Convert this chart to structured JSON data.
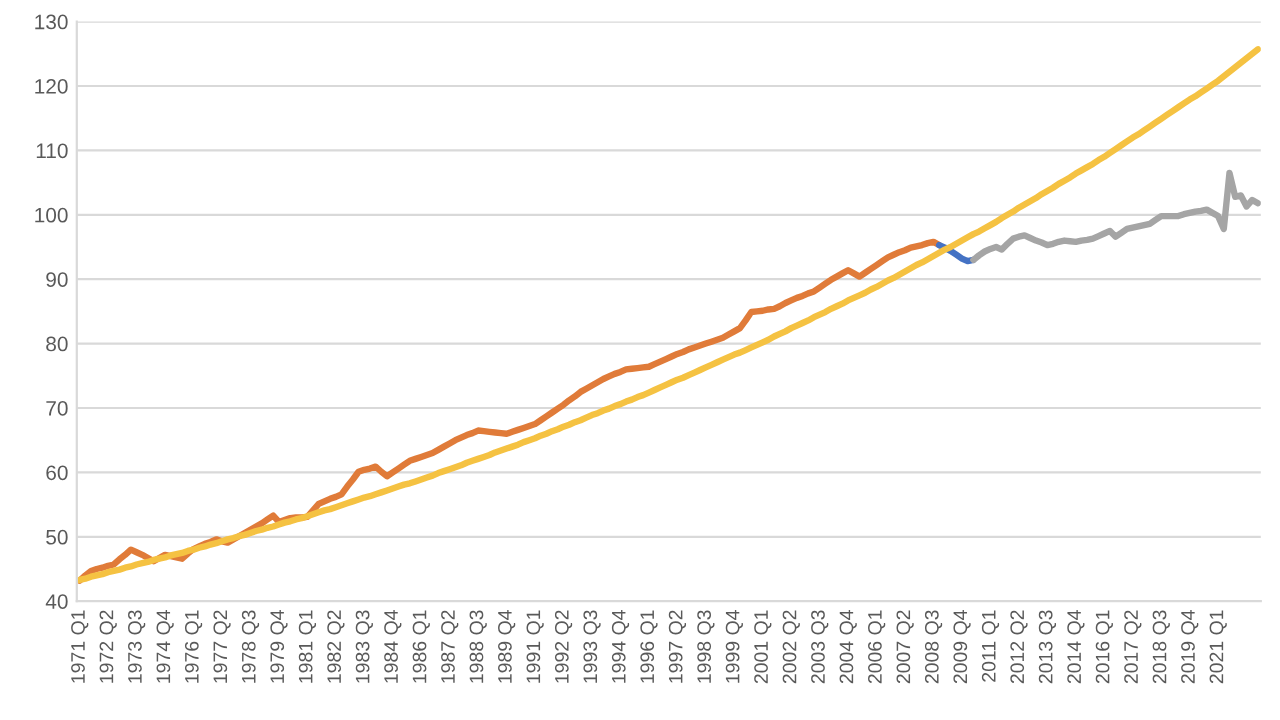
{
  "chart_data": {
    "type": "line",
    "categories": [
      "1971 Q1",
      null,
      null,
      null,
      null,
      "1972 Q2",
      null,
      null,
      null,
      null,
      "1973 Q3",
      null,
      null,
      null,
      null,
      "1974 Q4",
      null,
      null,
      null,
      null,
      "1976 Q1",
      null,
      null,
      null,
      null,
      "1977 Q2",
      null,
      null,
      null,
      null,
      "1978 Q3",
      null,
      null,
      null,
      null,
      "1979 Q4",
      null,
      null,
      null,
      null,
      "1981 Q1",
      null,
      null,
      null,
      null,
      "1982 Q2",
      null,
      null,
      null,
      null,
      "1983 Q3",
      null,
      null,
      null,
      null,
      "1984 Q4",
      null,
      null,
      null,
      null,
      "1986 Q1",
      null,
      null,
      null,
      null,
      "1987 Q2",
      null,
      null,
      null,
      null,
      "1988 Q3",
      null,
      null,
      null,
      null,
      "1989 Q4",
      null,
      null,
      null,
      null,
      "1991 Q1",
      null,
      null,
      null,
      null,
      "1992 Q2",
      null,
      null,
      null,
      null,
      "1993 Q3",
      null,
      null,
      null,
      null,
      "1994 Q4",
      null,
      null,
      null,
      null,
      "1996 Q1",
      null,
      null,
      null,
      null,
      "1997 Q2",
      null,
      null,
      null,
      null,
      "1998 Q3",
      null,
      null,
      null,
      null,
      "1999 Q4",
      null,
      null,
      null,
      null,
      "2001 Q1",
      null,
      null,
      null,
      null,
      "2002 Q2",
      null,
      null,
      null,
      null,
      "2003 Q3",
      null,
      null,
      null,
      null,
      "2004 Q4",
      null,
      null,
      null,
      null,
      "2006 Q1",
      null,
      null,
      null,
      null,
      "2007 Q2",
      null,
      null,
      null,
      null,
      "2008 Q3",
      null,
      null,
      null,
      null,
      "2009 Q4",
      null,
      null,
      null,
      null,
      "2011 Q1",
      null,
      null,
      null,
      null,
      "2012 Q2",
      null,
      null,
      null,
      null,
      "2013 Q3",
      null,
      null,
      null,
      null,
      "2014 Q4",
      null,
      null,
      null,
      null,
      "2016 Q1",
      null,
      null,
      null,
      null,
      "2017 Q2",
      null,
      null,
      null,
      null,
      "2018 Q3",
      null,
      null,
      null,
      null,
      "2019 Q4",
      null,
      null,
      null,
      null,
      "2021 Q1",
      null,
      null,
      null,
      null,
      null,
      null,
      null
    ],
    "ylim": [
      40,
      130
    ],
    "yticks": [
      40,
      50,
      60,
      70,
      80,
      90,
      100,
      110,
      120,
      130
    ],
    "grid": "y",
    "series": [
      {
        "color": "#e07b39",
        "values": [
          43.2,
          44.0,
          44.7,
          45.0,
          45.2,
          45.5,
          45.7,
          46.5,
          47.2,
          48.0,
          47.6,
          47.2,
          46.7,
          46.2,
          46.7,
          47.2,
          47.0,
          46.8,
          46.6,
          47.4,
          48.1,
          48.5,
          48.9,
          49.2,
          49.6,
          49.3,
          49.1,
          49.6,
          50.1,
          50.6,
          51.1,
          51.6,
          52.1,
          52.7,
          53.3,
          52.3,
          52.6,
          52.9,
          53.0,
          53.0,
          53.1,
          54.1,
          55.1,
          55.5,
          55.9,
          56.2,
          56.6,
          57.8,
          58.9,
          60.1,
          60.4,
          60.6,
          60.9,
          60.1,
          59.4,
          60.0,
          60.6,
          61.2,
          61.8,
          62.1,
          62.4,
          62.7,
          63.0,
          63.5,
          64.0,
          64.5,
          65.0,
          65.4,
          65.8,
          66.1,
          66.5,
          66.4,
          66.3,
          66.2,
          66.1,
          66.0,
          66.3,
          66.6,
          66.9,
          67.2,
          67.5,
          68.1,
          68.7,
          69.3,
          69.9,
          70.5,
          71.2,
          71.8,
          72.5,
          73.0,
          73.5,
          74.0,
          74.5,
          74.9,
          75.3,
          75.6,
          76.0,
          76.1,
          76.2,
          76.3,
          76.4,
          76.8,
          77.2,
          77.6,
          78.0,
          78.4,
          78.7,
          79.1,
          79.4,
          79.7,
          80.0,
          80.3,
          80.6,
          80.9,
          81.4,
          81.9,
          82.4,
          83.6,
          84.9,
          85.0,
          85.1,
          85.3,
          85.4,
          85.8,
          86.3,
          86.7,
          87.1,
          87.4,
          87.8,
          88.1,
          88.7,
          89.3,
          89.9,
          90.4,
          90.9,
          91.4,
          90.9,
          90.4,
          91.0,
          91.6,
          92.2,
          92.8,
          93.4,
          93.8,
          94.2,
          94.5,
          94.9,
          95.1,
          95.3,
          95.6,
          95.8,
          95.3,
          null,
          null,
          null,
          null,
          null,
          null,
          null,
          null,
          null,
          null,
          null,
          null,
          null,
          null,
          null,
          null,
          null,
          null,
          null,
          null,
          null,
          null,
          null,
          null,
          null,
          null,
          null,
          null,
          null,
          null,
          null,
          null,
          null,
          null,
          null,
          null,
          null,
          null,
          null,
          null,
          null,
          null,
          null,
          null,
          null,
          null,
          null,
          null,
          null,
          null,
          null,
          null,
          null,
          null,
          null,
          null
        ]
      },
      {
        "color": "#4472c4",
        "values": [
          null,
          null,
          null,
          null,
          null,
          null,
          null,
          null,
          null,
          null,
          null,
          null,
          null,
          null,
          null,
          null,
          null,
          null,
          null,
          null,
          null,
          null,
          null,
          null,
          null,
          null,
          null,
          null,
          null,
          null,
          null,
          null,
          null,
          null,
          null,
          null,
          null,
          null,
          null,
          null,
          null,
          null,
          null,
          null,
          null,
          null,
          null,
          null,
          null,
          null,
          null,
          null,
          null,
          null,
          null,
          null,
          null,
          null,
          null,
          null,
          null,
          null,
          null,
          null,
          null,
          null,
          null,
          null,
          null,
          null,
          null,
          null,
          null,
          null,
          null,
          null,
          null,
          null,
          null,
          null,
          null,
          null,
          null,
          null,
          null,
          null,
          null,
          null,
          null,
          null,
          null,
          null,
          null,
          null,
          null,
          null,
          null,
          null,
          null,
          null,
          null,
          null,
          null,
          null,
          null,
          null,
          null,
          null,
          null,
          null,
          null,
          null,
          null,
          null,
          null,
          null,
          null,
          null,
          null,
          null,
          null,
          null,
          null,
          null,
          null,
          null,
          null,
          null,
          null,
          null,
          null,
          null,
          null,
          null,
          null,
          null,
          null,
          null,
          null,
          null,
          null,
          null,
          null,
          null,
          null,
          null,
          null,
          null,
          null,
          null,
          null,
          95.3,
          94.9,
          94.4,
          93.8,
          93.2,
          92.8,
          93.0,
          null,
          null,
          null,
          null,
          null,
          null,
          null,
          null,
          null,
          null,
          null,
          null,
          null,
          null,
          null,
          null,
          null,
          null,
          null,
          null,
          null,
          null,
          null,
          null,
          null,
          null,
          null,
          null,
          null,
          null,
          null,
          null,
          null,
          null,
          null,
          null,
          null,
          null,
          null,
          null,
          null,
          null,
          null,
          null,
          null,
          null,
          null,
          null,
          null,
          null
        ]
      },
      {
        "color": "#a5a5a5",
        "values": [
          null,
          null,
          null,
          null,
          null,
          null,
          null,
          null,
          null,
          null,
          null,
          null,
          null,
          null,
          null,
          null,
          null,
          null,
          null,
          null,
          null,
          null,
          null,
          null,
          null,
          null,
          null,
          null,
          null,
          null,
          null,
          null,
          null,
          null,
          null,
          null,
          null,
          null,
          null,
          null,
          null,
          null,
          null,
          null,
          null,
          null,
          null,
          null,
          null,
          null,
          null,
          null,
          null,
          null,
          null,
          null,
          null,
          null,
          null,
          null,
          null,
          null,
          null,
          null,
          null,
          null,
          null,
          null,
          null,
          null,
          null,
          null,
          null,
          null,
          null,
          null,
          null,
          null,
          null,
          null,
          null,
          null,
          null,
          null,
          null,
          null,
          null,
          null,
          null,
          null,
          null,
          null,
          null,
          null,
          null,
          null,
          null,
          null,
          null,
          null,
          null,
          null,
          null,
          null,
          null,
          null,
          null,
          null,
          null,
          null,
          null,
          null,
          null,
          null,
          null,
          null,
          null,
          null,
          null,
          null,
          null,
          null,
          null,
          null,
          null,
          null,
          null,
          null,
          null,
          null,
          null,
          null,
          null,
          null,
          null,
          null,
          null,
          null,
          null,
          null,
          null,
          null,
          null,
          null,
          null,
          null,
          null,
          null,
          null,
          null,
          null,
          null,
          null,
          null,
          null,
          null,
          null,
          93.0,
          93.7,
          94.3,
          94.7,
          95.0,
          94.6,
          95.5,
          96.3,
          96.6,
          96.8,
          96.4,
          96.0,
          95.7,
          95.3,
          95.5,
          95.8,
          96.0,
          95.9,
          95.8,
          96.0,
          96.1,
          96.3,
          96.7,
          97.1,
          97.5,
          96.6,
          97.2,
          97.8,
          98.0,
          98.2,
          98.4,
          98.6,
          99.2,
          99.8,
          99.8,
          99.8,
          99.8,
          100.1,
          100.3,
          100.5,
          100.6,
          100.8,
          100.3,
          99.8,
          97.8,
          106.5,
          102.8,
          103.0,
          101.3,
          102.3,
          101.8
        ]
      },
      {
        "color": "#f5c242",
        "values": [
          43.3,
          43.5,
          43.8,
          44.0,
          44.2,
          44.5,
          44.7,
          44.9,
          45.2,
          45.4,
          45.7,
          45.9,
          46.1,
          46.4,
          46.6,
          46.8,
          47.1,
          47.3,
          47.5,
          47.8,
          48.0,
          48.3,
          48.5,
          48.8,
          49.0,
          49.3,
          49.6,
          49.8,
          50.1,
          50.3,
          50.6,
          50.9,
          51.1,
          51.4,
          51.6,
          51.9,
          52.2,
          52.4,
          52.7,
          52.9,
          53.2,
          53.5,
          53.8,
          54.1,
          54.3,
          54.6,
          54.9,
          55.2,
          55.5,
          55.8,
          56.1,
          56.3,
          56.6,
          56.9,
          57.2,
          57.5,
          57.8,
          58.1,
          58.3,
          58.6,
          58.9,
          59.2,
          59.5,
          59.9,
          60.2,
          60.5,
          60.8,
          61.1,
          61.5,
          61.8,
          62.1,
          62.4,
          62.7,
          63.1,
          63.4,
          63.7,
          64.0,
          64.3,
          64.7,
          65.0,
          65.3,
          65.7,
          66.0,
          66.4,
          66.7,
          67.1,
          67.4,
          67.8,
          68.1,
          68.5,
          68.9,
          69.2,
          69.6,
          69.9,
          70.3,
          70.6,
          71.0,
          71.3,
          71.7,
          72.0,
          72.4,
          72.8,
          73.2,
          73.6,
          74.0,
          74.4,
          74.7,
          75.1,
          75.5,
          75.9,
          76.3,
          76.7,
          77.1,
          77.5,
          77.9,
          78.3,
          78.6,
          79.0,
          79.4,
          79.8,
          80.2,
          80.6,
          81.1,
          81.5,
          81.9,
          82.4,
          82.8,
          83.2,
          83.6,
          84.1,
          84.5,
          84.9,
          85.4,
          85.8,
          86.2,
          86.7,
          87.1,
          87.5,
          87.9,
          88.4,
          88.8,
          89.3,
          89.8,
          90.2,
          90.7,
          91.2,
          91.7,
          92.2,
          92.6,
          93.1,
          93.6,
          94.1,
          94.6,
          95.0,
          95.5,
          96.0,
          96.5,
          97.0,
          97.4,
          97.9,
          98.4,
          98.9,
          99.5,
          100.0,
          100.5,
          101.1,
          101.6,
          102.1,
          102.6,
          103.2,
          103.7,
          104.2,
          104.8,
          105.3,
          105.8,
          106.4,
          106.9,
          107.4,
          107.9,
          108.5,
          109.0,
          109.6,
          110.2,
          110.8,
          111.4,
          112.0,
          112.5,
          113.1,
          113.7,
          114.3,
          114.9,
          115.5,
          116.1,
          116.7,
          117.3,
          117.9,
          118.4,
          119.0,
          119.6,
          120.2,
          120.8,
          121.5,
          122.2,
          122.9,
          123.6,
          124.3,
          125.0,
          125.7
        ]
      }
    ]
  }
}
